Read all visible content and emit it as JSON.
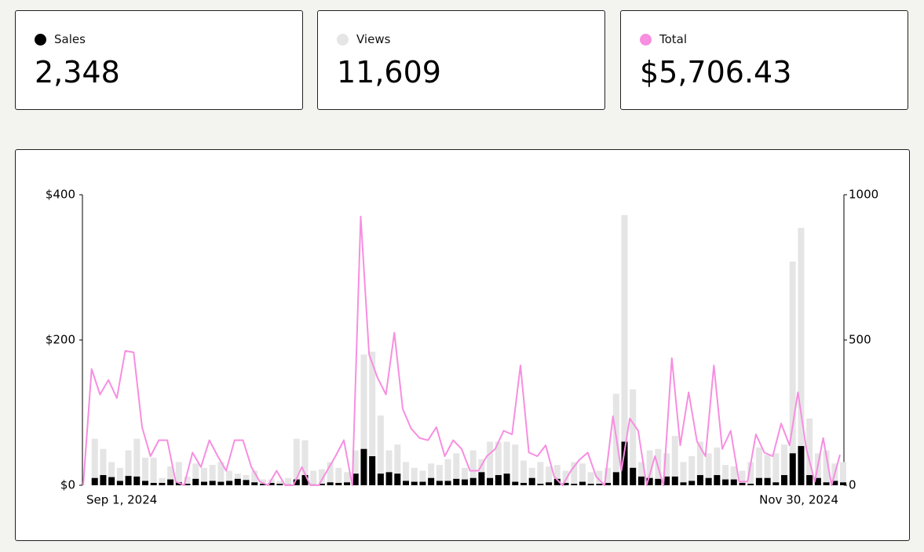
{
  "stats": [
    "2,348",
    "11,609",
    "$5,706.43"
  ],
  "chart_data": {
    "type": "combo",
    "categories": [
      "Sep 1, 2024",
      null,
      null,
      null,
      null,
      null,
      null,
      null,
      null,
      null,
      null,
      null,
      null,
      null,
      null,
      null,
      null,
      null,
      null,
      null,
      null,
      null,
      null,
      null,
      null,
      null,
      null,
      null,
      null,
      null,
      null,
      null,
      null,
      null,
      null,
      null,
      null,
      null,
      null,
      null,
      null,
      null,
      null,
      null,
      null,
      null,
      null,
      null,
      null,
      null,
      null,
      null,
      null,
      null,
      null,
      null,
      null,
      null,
      null,
      null,
      null,
      null,
      null,
      null,
      null,
      null,
      null,
      null,
      null,
      null,
      null,
      null,
      null,
      null,
      null,
      null,
      null,
      null,
      null,
      null,
      null,
      null,
      null,
      null,
      null,
      null,
      null,
      null,
      null,
      null,
      "Nov 30, 2024"
    ],
    "series": [
      {
        "name": "Sales",
        "type": "bar",
        "axis": "y2",
        "color": "#000000",
        "values": [
          0,
          25,
          35,
          28,
          15,
          32,
          30,
          15,
          8,
          8,
          20,
          10,
          5,
          22,
          12,
          15,
          12,
          15,
          22,
          18,
          10,
          5,
          8,
          5,
          3,
          20,
          35,
          3,
          5,
          10,
          8,
          10,
          40,
          125,
          100,
          40,
          45,
          40,
          15,
          12,
          12,
          25,
          15,
          15,
          22,
          20,
          25,
          45,
          25,
          35,
          40,
          12,
          8,
          25,
          5,
          10,
          22,
          8,
          5,
          12,
          5,
          5,
          8,
          45,
          150,
          60,
          30,
          25,
          22,
          30,
          30,
          10,
          15,
          35,
          25,
          35,
          20,
          20,
          8,
          5,
          25,
          25,
          10,
          35,
          110,
          135,
          35,
          25,
          10,
          15,
          10
        ]
      },
      {
        "name": "Views",
        "type": "bar",
        "axis": "y2",
        "color": "#e5e5e5",
        "values": [
          0,
          160,
          125,
          80,
          60,
          120,
          160,
          95,
          95,
          25,
          65,
          80,
          30,
          75,
          60,
          70,
          80,
          50,
          40,
          35,
          50,
          20,
          20,
          15,
          25,
          160,
          155,
          50,
          55,
          80,
          60,
          45,
          120,
          450,
          460,
          240,
          120,
          140,
          80,
          60,
          50,
          75,
          70,
          90,
          110,
          60,
          120,
          90,
          150,
          150,
          150,
          140,
          85,
          60,
          80,
          65,
          70,
          50,
          80,
          75,
          45,
          50,
          60,
          315,
          930,
          330,
          80,
          120,
          125,
          110,
          170,
          80,
          100,
          150,
          110,
          130,
          70,
          65,
          50,
          80,
          130,
          105,
          110,
          140,
          770,
          886,
          230,
          110,
          120,
          75,
          80
        ]
      },
      {
        "name": "Total",
        "type": "line",
        "axis": "y",
        "color": "#f78ee0",
        "values": [
          0,
          160,
          125,
          145,
          120,
          185,
          183,
          80,
          40,
          62,
          62,
          5,
          0,
          45,
          25,
          62,
          40,
          20,
          62,
          62,
          25,
          5,
          0,
          20,
          0,
          0,
          25,
          0,
          0,
          20,
          40,
          62,
          0,
          370,
          180,
          148,
          125,
          210,
          105,
          78,
          65,
          62,
          80,
          40,
          62,
          50,
          20,
          20,
          40,
          50,
          75,
          70,
          165,
          45,
          40,
          55,
          12,
          0,
          20,
          35,
          45,
          12,
          0,
          95,
          20,
          92,
          75,
          0,
          40,
          0,
          175,
          55,
          128,
          60,
          40,
          165,
          50,
          75,
          5,
          5,
          70,
          45,
          40,
          85,
          55,
          128,
          50,
          5,
          65,
          0,
          42
        ]
      }
    ],
    "ylim": [
      0,
      400
    ],
    "yticks": [
      {
        "value": 0,
        "label": "$0"
      },
      {
        "value": 200,
        "label": "$200"
      },
      {
        "value": 400,
        "label": "$400"
      }
    ],
    "y2lim": [
      0,
      1000
    ],
    "y2ticks": [
      0,
      500,
      1000
    ]
  }
}
